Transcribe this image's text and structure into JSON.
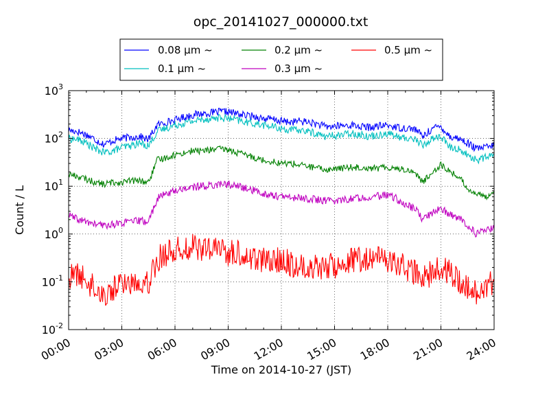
{
  "chart_data": {
    "type": "line",
    "title": "opc_20141027_000000.txt",
    "xlabel": "Time on 2014-10-27 (JST)",
    "ylabel": "Count / L",
    "yscale": "log",
    "ylim": [
      0.01,
      1000
    ],
    "xlim": [
      "00:00",
      "24:00"
    ],
    "grid": true,
    "legend_position": "top",
    "x_tick_labels": [
      "00:00",
      "03:00",
      "06:00",
      "09:00",
      "12:00",
      "15:00",
      "18:00",
      "21:00",
      "24:00"
    ],
    "y_ticks": [
      {
        "value": 0.01,
        "base": "10",
        "exp": "-2"
      },
      {
        "value": 0.1,
        "base": "10",
        "exp": "-1"
      },
      {
        "value": 1,
        "base": "10",
        "exp": "0"
      },
      {
        "value": 10,
        "base": "10",
        "exp": "1"
      },
      {
        "value": 100,
        "base": "10",
        "exp": "2"
      },
      {
        "value": 1000,
        "base": "10",
        "exp": "3"
      }
    ],
    "x_hours": [
      0,
      0.5,
      1,
      1.5,
      2,
      2.5,
      3,
      3.5,
      4,
      4.5,
      5,
      5.5,
      6,
      6.5,
      7,
      7.5,
      8,
      8.5,
      9,
      9.5,
      10,
      10.5,
      11,
      11.5,
      12,
      12.5,
      13,
      13.5,
      14,
      14.5,
      15,
      15.5,
      16,
      16.5,
      17,
      17.5,
      18,
      18.5,
      19,
      19.5,
      20,
      20.5,
      21,
      21.5,
      22,
      22.5,
      23,
      23.5,
      24
    ],
    "series": [
      {
        "name": "0.08 μm ~",
        "color": "#0000ff",
        "values": [
          150,
          140,
          120,
          95,
          75,
          90,
          100,
          105,
          110,
          95,
          190,
          220,
          240,
          280,
          310,
          330,
          340,
          360,
          360,
          330,
          300,
          290,
          260,
          250,
          230,
          220,
          230,
          220,
          200,
          175,
          180,
          185,
          190,
          175,
          170,
          180,
          190,
          170,
          165,
          160,
          110,
          160,
          180,
          110,
          100,
          80,
          60,
          65,
          70
        ]
      },
      {
        "name": "0.1 μm ~",
        "color": "#00bfbf",
        "values": [
          100,
          95,
          80,
          60,
          50,
          55,
          65,
          70,
          80,
          70,
          140,
          165,
          190,
          210,
          230,
          250,
          260,
          270,
          260,
          240,
          220,
          205,
          190,
          175,
          160,
          150,
          150,
          140,
          125,
          110,
          115,
          120,
          130,
          120,
          110,
          120,
          130,
          110,
          100,
          100,
          70,
          100,
          110,
          65,
          60,
          45,
          35,
          40,
          45
        ]
      },
      {
        "name": "0.2 μm ~",
        "color": "#008000",
        "values": [
          18,
          16,
          14,
          12,
          11,
          12,
          12,
          13,
          13,
          12,
          35,
          40,
          45,
          50,
          55,
          55,
          58,
          60,
          58,
          50,
          45,
          40,
          35,
          33,
          30,
          30,
          28,
          26,
          24,
          22,
          23,
          24,
          25,
          25,
          24,
          24,
          25,
          24,
          22,
          20,
          12,
          20,
          28,
          20,
          16,
          9,
          7,
          6,
          8
        ]
      },
      {
        "name": "0.3 μm ~",
        "color": "#bf00bf",
        "values": [
          2.5,
          2.0,
          1.8,
          1.6,
          1.5,
          1.6,
          1.7,
          1.8,
          1.9,
          1.8,
          5.5,
          7.0,
          8.0,
          9.0,
          9.5,
          10,
          10.5,
          11,
          11,
          10,
          9,
          8,
          7,
          6.5,
          6,
          5.8,
          5.7,
          5.5,
          5.2,
          5,
          5,
          5.2,
          5.5,
          5.8,
          6,
          6.2,
          6.5,
          5.5,
          4,
          3.5,
          2,
          2.8,
          3.5,
          2.5,
          2.2,
          1.5,
          1.0,
          1.2,
          1.3
        ]
      },
      {
        "name": "0.5 μm ~",
        "color": "#ff0000",
        "values": [
          0.12,
          0.15,
          0.1,
          0.08,
          0.05,
          0.07,
          0.1,
          0.09,
          0.11,
          0.1,
          0.3,
          0.4,
          0.45,
          0.5,
          0.55,
          0.5,
          0.45,
          0.5,
          0.4,
          0.4,
          0.35,
          0.3,
          0.3,
          0.25,
          0.3,
          0.25,
          0.2,
          0.2,
          0.22,
          0.2,
          0.22,
          0.25,
          0.3,
          0.3,
          0.28,
          0.3,
          0.3,
          0.25,
          0.2,
          0.15,
          0.12,
          0.15,
          0.2,
          0.15,
          0.1,
          0.08,
          0.06,
          0.08,
          0.1
        ]
      }
    ]
  }
}
